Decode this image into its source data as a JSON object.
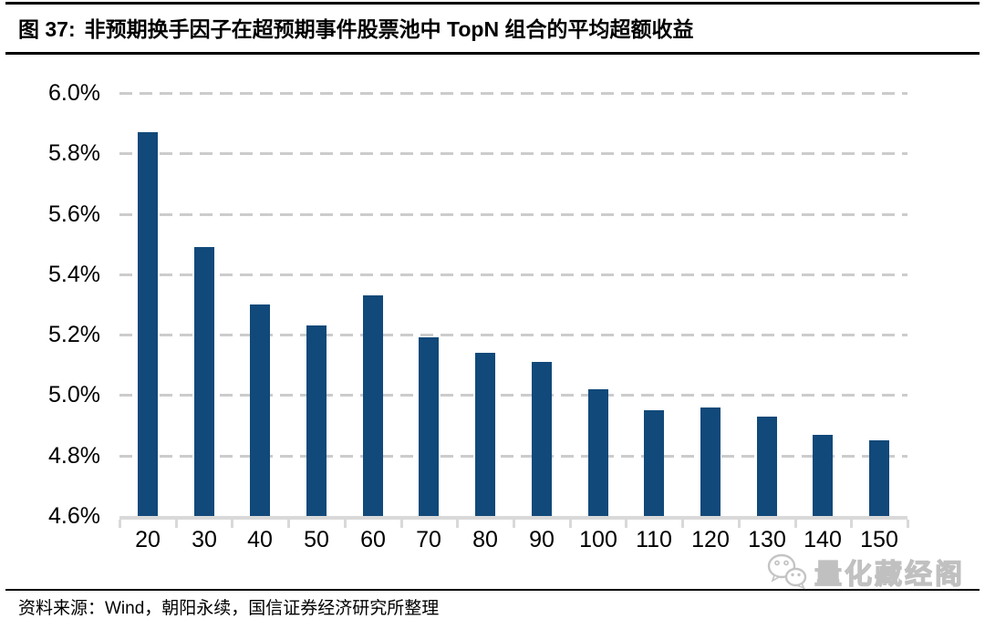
{
  "figure": {
    "label": "图 37:",
    "title": "非预期换手因子在超预期事件股票池中 TopN 组合的平均超额收益"
  },
  "source_note": "资料来源：Wind，朝阳永续，国信证券经济研究所整理",
  "watermark": {
    "icon": "wechat-icon",
    "text": "量化藏经阁"
  },
  "colors": {
    "bar": "#11497A",
    "gridline": "#CCCCCC",
    "axis": "#D9D9D9",
    "rule": "#000000",
    "watermark": "#C4C4C4"
  },
  "chart_data": {
    "type": "bar",
    "title": "非预期换手因子在超预期事件股票池中 TopN 组合的平均超额收益",
    "categories": [
      "20",
      "30",
      "40",
      "50",
      "60",
      "70",
      "80",
      "90",
      "100",
      "110",
      "120",
      "130",
      "140",
      "150"
    ],
    "values": [
      5.87,
      5.49,
      5.3,
      5.23,
      5.33,
      5.19,
      5.14,
      5.11,
      5.02,
      4.95,
      4.96,
      4.93,
      4.87,
      4.85
    ],
    "unit": "%",
    "xlabel": "",
    "ylabel": "",
    "ylim": [
      4.6,
      6.0
    ],
    "ytick_step": 0.2,
    "ytick_labels": [
      "6.0%",
      "5.8%",
      "5.6%",
      "5.4%",
      "5.2%",
      "5.0%",
      "4.8%",
      "4.6%"
    ],
    "grid": "horizontal-dashed",
    "legend": "none"
  }
}
